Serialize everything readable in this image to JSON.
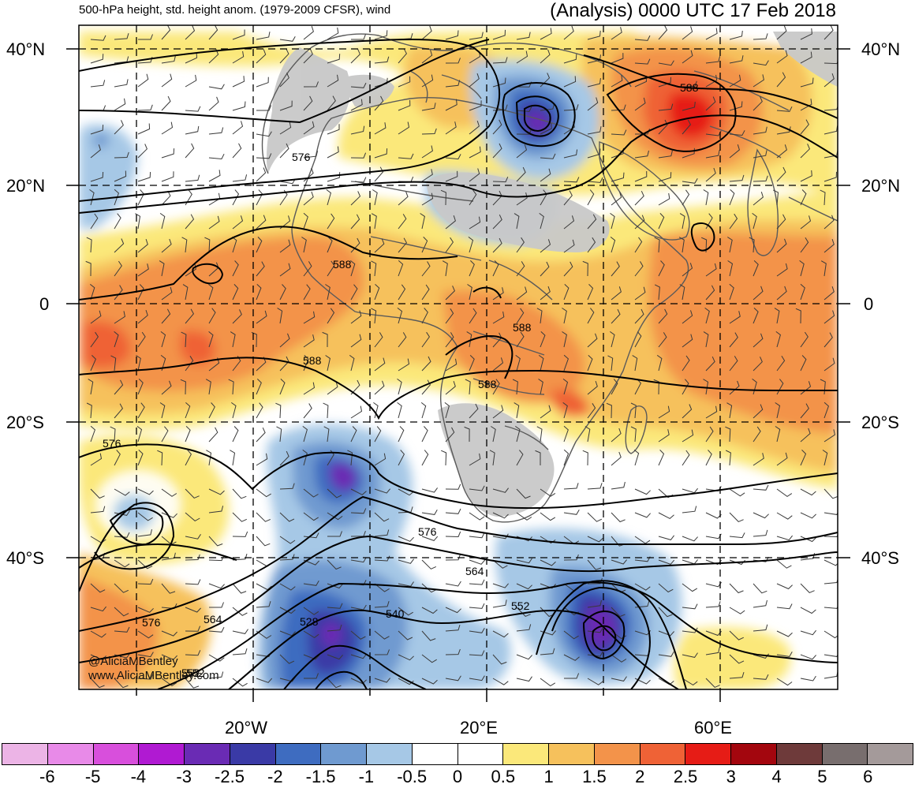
{
  "title_left": "500-hPa height, std. height anom. (1979-2009 CFSR), wind",
  "title_right": "(Analysis) 0000 UTC 17 Feb 2018",
  "credit": [
    "@AliciaMBentley",
    "www.AliciaMBentley.com"
  ],
  "lat_labels": [
    "40°N",
    "20°N",
    "0",
    "20°S",
    "40°S"
  ],
  "lon_labels": [
    "20°W",
    "20°E",
    "60°E"
  ],
  "contour_labels": [
    "576",
    "588",
    "588",
    "588",
    "588",
    "576",
    "576",
    "564",
    "552",
    "540",
    "528",
    "552",
    "576",
    "564",
    "588",
    "552"
  ],
  "colorbar": {
    "labels": [
      "-6",
      "-5",
      "-4",
      "-3",
      "-2.5",
      "-2",
      "-1.5",
      "-1",
      "-0.5",
      "0",
      "0.5",
      "1",
      "1.5",
      "2",
      "2.5",
      "3",
      "4",
      "5",
      "6"
    ],
    "colors": [
      "#ecb4e6",
      "#e88ae8",
      "#d84fdc",
      "#b01ad2",
      "#6a2bb4",
      "#3a3aa6",
      "#3e6cc0",
      "#6f9ad0",
      "#a6c8e6",
      "#ffffff",
      "#ffffff",
      "#fbe87a",
      "#f6c15c",
      "#f3934a",
      "#ef6236",
      "#e61c16",
      "#a3060e",
      "#6e3a3a",
      "#786e6e",
      "#a49a9a"
    ]
  },
  "land_color": "#c8c8c8",
  "barb_color": "#3a3a3a"
}
